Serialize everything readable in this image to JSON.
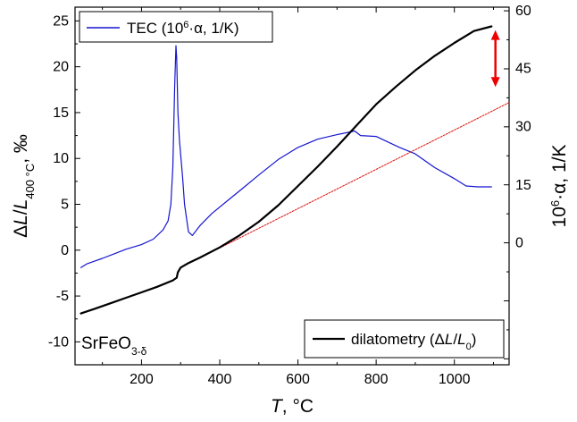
{
  "chart_data": {
    "type": "line",
    "sample_label": "SrFeO",
    "sample_sub": "3-δ",
    "x_axis": {
      "label_italic": "T",
      "label_rest": ", °C",
      "range": [
        30,
        1140
      ],
      "ticks": [
        200,
        400,
        600,
        800,
        1000
      ]
    },
    "y_left": {
      "label_delta": "Δ",
      "label_L": "L",
      "label_slash": "/",
      "label_L2": "L",
      "label_sub": "400 °C",
      "label_unit": ", ‰",
      "range": [
        -12.5,
        26.5
      ],
      "ticks": [
        -10,
        -5,
        0,
        5,
        10,
        15,
        20,
        25
      ]
    },
    "y_right": {
      "label_pre": "10",
      "label_sup": "6",
      "label_post": "·α, 1/K",
      "range": [
        -12.5,
        26.5
      ],
      "ticks": [
        0,
        15,
        30,
        45,
        60
      ],
      "tick_positions_left_units": [
        0.8,
        7.1,
        13.5,
        19.8,
        26.1
      ]
    },
    "legend_top": {
      "text_pre": "TEC (10",
      "text_sup": "6",
      "text_post": "·α, 1/K)",
      "color": "#0000cc"
    },
    "legend_bottom": {
      "text_pre": "dilatometry (Δ",
      "text_L": "L",
      "text_slash": "/",
      "text_L0": "L",
      "text_sub": "0",
      "text_close": ")",
      "color": "#000000"
    },
    "colors": {
      "dilatometry": "#000000",
      "tec": "#1515d0",
      "linear_fit": "#e01010",
      "arrow": "#ee0000"
    },
    "series": [
      {
        "name": "dilatometry",
        "x": [
          45,
          80,
          120,
          160,
          200,
          240,
          280,
          290,
          293,
          300,
          320,
          350,
          400,
          450,
          500,
          550,
          600,
          650,
          700,
          750,
          800,
          850,
          900,
          950,
          1000,
          1050,
          1095
        ],
        "y": [
          -6.9,
          -6.4,
          -5.8,
          -5.2,
          -4.6,
          -4.0,
          -3.3,
          -3.0,
          -2.4,
          -1.9,
          -1.4,
          -0.8,
          0.3,
          1.6,
          3.1,
          4.9,
          7.0,
          9.1,
          11.3,
          13.6,
          15.9,
          17.8,
          19.6,
          21.2,
          22.6,
          23.9,
          24.4
        ]
      },
      {
        "name": "tec",
        "x": [
          45,
          60,
          80,
          100,
          130,
          160,
          200,
          230,
          255,
          268,
          275,
          280,
          285,
          288,
          290,
          293,
          297,
          300,
          305,
          310,
          320,
          330,
          350,
          380,
          420,
          460,
          500,
          550,
          600,
          650,
          700,
          745,
          760,
          800,
          830,
          860,
          900,
          950,
          1000,
          1030,
          1060,
          1095
        ],
        "y": [
          -1.9,
          -1.5,
          -1.2,
          -0.9,
          -0.4,
          0.1,
          0.6,
          1.2,
          2.2,
          3.2,
          5.0,
          9.0,
          18.0,
          22.3,
          21.0,
          15.0,
          12.0,
          10.5,
          8.0,
          5.0,
          2.0,
          1.6,
          2.7,
          4.0,
          5.4,
          6.8,
          8.2,
          9.9,
          11.2,
          12.1,
          12.6,
          13.0,
          12.5,
          12.4,
          11.8,
          11.2,
          10.5,
          9.0,
          7.8,
          7.0,
          6.9,
          6.9
        ]
      },
      {
        "name": "linear_fit",
        "x": [
          300,
          1140
        ],
        "y": [
          -1.9,
          16.1
        ]
      }
    ],
    "arrow": {
      "x": 1105,
      "y_top": 24.0,
      "y_bottom": 17.8
    }
  }
}
